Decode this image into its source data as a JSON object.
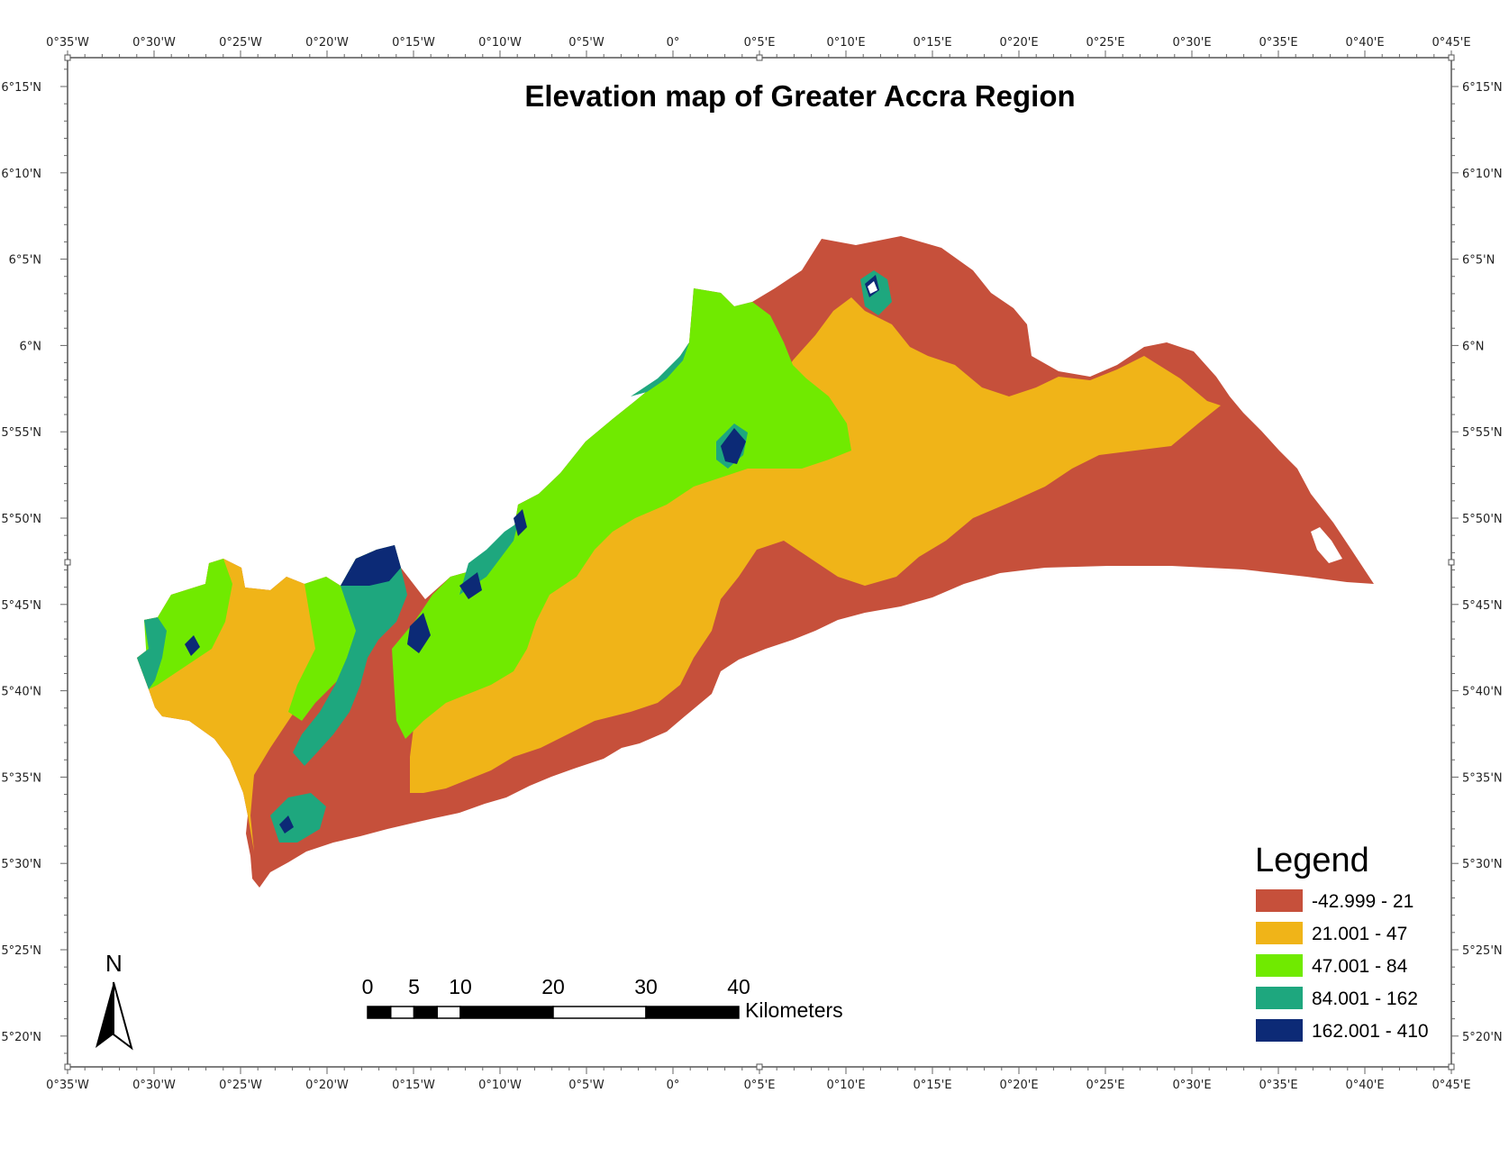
{
  "map": {
    "title": "Elevation map of Greater Accra Region",
    "lon_ticks": [
      "0°35'W",
      "0°30'W",
      "0°25'W",
      "0°20'W",
      "0°15'W",
      "0°10'W",
      "0°5'W",
      "0°",
      "0°5'E",
      "0°10'E",
      "0°15'E",
      "0°20'E",
      "0°25'E",
      "0°30'E",
      "0°35'E",
      "0°40'E",
      "0°45'E"
    ],
    "lat_ticks": [
      "6°15'N",
      "6°10'N",
      "6°5'N",
      "6°N",
      "5°55'N",
      "5°50'N",
      "5°45'N",
      "5°40'N",
      "5°35'N",
      "5°30'N",
      "5°25'N",
      "5°20'N"
    ]
  },
  "legend": {
    "title": "Legend",
    "classes": [
      {
        "label": "-42.999 - 21",
        "color": "#c6503b"
      },
      {
        "label": "21.001 - 47",
        "color": "#f0b418"
      },
      {
        "label": "47.001 - 84",
        "color": "#70ea00"
      },
      {
        "label": "84.001 - 162",
        "color": "#1ea77e"
      },
      {
        "label": "162.001 - 410",
        "color": "#0c2a76"
      }
    ]
  },
  "scale_bar": {
    "ticks": [
      "0",
      "5",
      "10",
      "20",
      "30",
      "40"
    ],
    "unit": "Kilometers"
  },
  "north_arrow": {
    "label": "N"
  }
}
